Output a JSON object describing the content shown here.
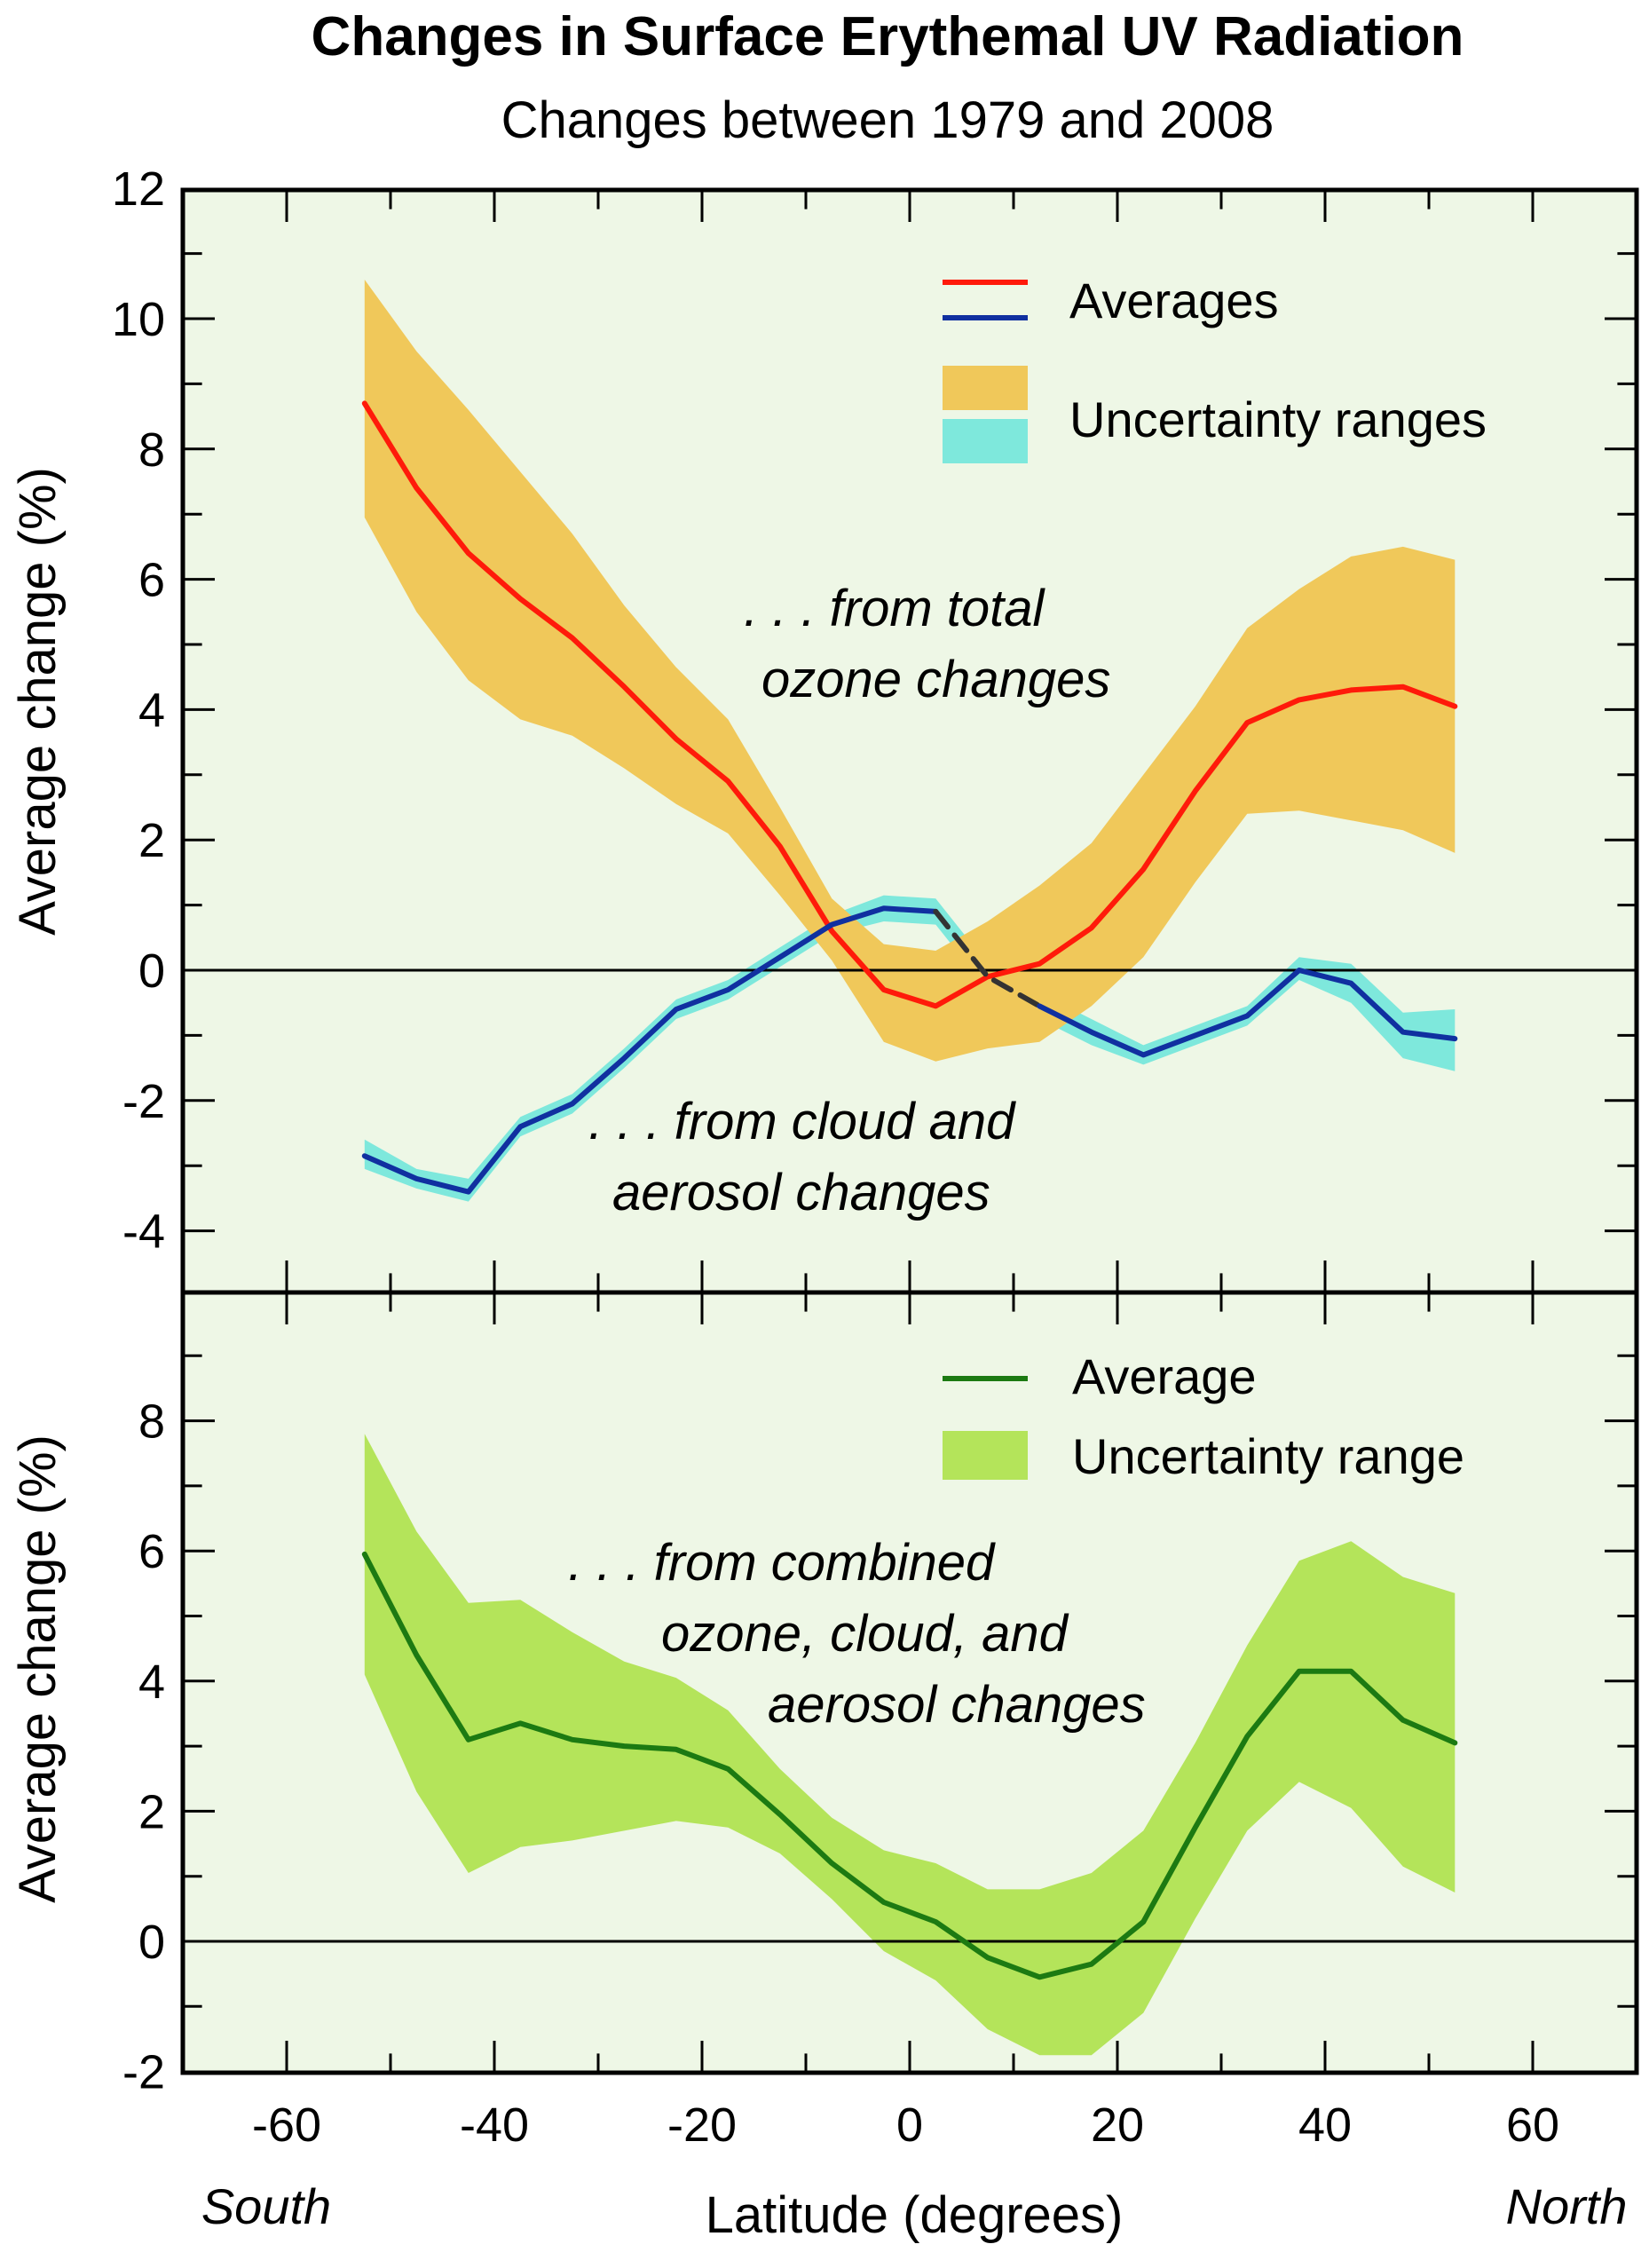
{
  "title": "Changes in Surface Erythemal UV Radiation",
  "subtitle": "Changes between 1979 and 2008",
  "x_axis": {
    "label": "Latitude (degrees)",
    "left_note": "South",
    "right_note": "North",
    "ticks": [
      -60,
      -40,
      -20,
      0,
      20,
      40,
      60
    ],
    "range": [
      -70,
      70
    ]
  },
  "colors": {
    "background": "#eef7e6",
    "ozone_avg": "#ff1a0a",
    "ozone_band": "#f0c85a",
    "cloud_avg": "#1030a0",
    "cloud_band": "#7ee8dc",
    "combined_avg": "#1c7a12",
    "combined_band": "#b4e45a"
  },
  "chart_data": [
    {
      "type": "line",
      "panel": "top",
      "ylabel": "Average change (%)",
      "ylim": [
        -5,
        12
      ],
      "yticks": [
        -4,
        -2,
        0,
        2,
        4,
        6,
        8,
        10,
        12
      ],
      "legend": {
        "avg_label": "Averages",
        "range_label": "Uncertainty ranges"
      },
      "annotations": [
        ". . . from total",
        "ozone changes",
        ". . . from cloud and",
        "aerosol  changes"
      ],
      "series": [
        {
          "name": "from total ozone changes",
          "x": [
            -52.5,
            -47.5,
            -42.5,
            -37.5,
            -32.5,
            -27.5,
            -22.5,
            -17.5,
            -12.5,
            -7.5,
            -2.5,
            2.5,
            7.5,
            12.5,
            17.5,
            22.5,
            27.5,
            32.5,
            37.5,
            42.5,
            47.5,
            52.5
          ],
          "values": [
            8.7,
            7.4,
            6.4,
            5.7,
            5.1,
            4.35,
            3.55,
            2.9,
            1.9,
            0.6,
            -0.3,
            -0.55,
            -0.1,
            0.1,
            0.65,
            1.55,
            2.75,
            3.8,
            4.15,
            4.3,
            4.35,
            4.05
          ],
          "lower": [
            6.95,
            5.5,
            4.45,
            3.85,
            3.6,
            3.1,
            2.55,
            2.1,
            1.15,
            0.15,
            -1.1,
            -1.4,
            -1.2,
            -1.1,
            -0.55,
            0.2,
            1.35,
            2.4,
            2.45,
            2.3,
            2.15,
            1.8
          ],
          "upper": [
            10.6,
            9.5,
            8.6,
            7.65,
            6.7,
            5.6,
            4.65,
            3.85,
            2.5,
            1.1,
            0.4,
            0.3,
            0.75,
            1.3,
            1.95,
            3.0,
            4.05,
            5.25,
            5.85,
            6.35,
            6.5,
            6.3
          ]
        },
        {
          "name": "from cloud and aerosol changes",
          "x": [
            -52.5,
            -47.5,
            -42.5,
            -37.5,
            -32.5,
            -27.5,
            -22.5,
            -17.5,
            -12.5,
            -7.5,
            -2.5,
            2.5,
            7.5,
            12.5,
            17.5,
            22.5,
            27.5,
            32.5,
            37.5,
            42.5,
            47.5,
            52.5
          ],
          "values": [
            -2.85,
            -3.2,
            -3.4,
            -2.4,
            -2.05,
            -1.35,
            -0.6,
            -0.3,
            0.2,
            0.7,
            0.95,
            0.9,
            -0.1,
            -0.55,
            -0.95,
            -1.3,
            -1.0,
            -0.7,
            0.0,
            -0.2,
            -0.95,
            -1.05
          ],
          "lower": [
            -3.05,
            -3.35,
            -3.55,
            -2.55,
            -2.2,
            -1.5,
            -0.75,
            -0.45,
            0.05,
            0.55,
            0.75,
            0.7,
            -0.3,
            -0.75,
            -1.15,
            -1.45,
            -1.15,
            -0.85,
            -0.15,
            -0.5,
            -1.35,
            -1.55
          ],
          "upper": [
            -2.6,
            -3.05,
            -3.2,
            -2.25,
            -1.9,
            -1.2,
            -0.45,
            -0.15,
            0.35,
            0.85,
            1.15,
            1.1,
            0.1,
            -0.35,
            -0.75,
            -1.15,
            -0.85,
            -0.55,
            0.2,
            0.1,
            -0.65,
            -0.6
          ],
          "dashed_range": [
            2.5,
            12.5
          ]
        }
      ]
    },
    {
      "type": "line",
      "panel": "bottom",
      "ylabel": "Average change (%)",
      "ylim": [
        -2,
        10
      ],
      "yticks": [
        -2,
        0,
        2,
        4,
        6,
        8
      ],
      "legend": {
        "avg_label": "Average",
        "range_label": "Uncertainty range"
      },
      "annotations": [
        ". . . from combined",
        "ozone, cloud, and",
        "aerosol changes"
      ],
      "series": [
        {
          "name": "from combined ozone, cloud, and aerosol changes",
          "x": [
            -52.5,
            -47.5,
            -42.5,
            -37.5,
            -32.5,
            -27.5,
            -22.5,
            -17.5,
            -12.5,
            -7.5,
            -2.5,
            2.5,
            7.5,
            12.5,
            17.5,
            22.5,
            27.5,
            32.5,
            37.5,
            42.5,
            47.5,
            52.5
          ],
          "values": [
            5.95,
            4.4,
            3.1,
            3.35,
            3.1,
            3.0,
            2.95,
            2.65,
            1.95,
            1.2,
            0.6,
            0.3,
            -0.25,
            -0.55,
            -0.35,
            0.3,
            1.75,
            3.15,
            4.15,
            4.15,
            3.4,
            3.05
          ],
          "lower": [
            4.1,
            2.3,
            1.05,
            1.45,
            1.55,
            1.7,
            1.85,
            1.75,
            1.35,
            0.65,
            -0.15,
            -0.6,
            -1.35,
            -1.75,
            -1.75,
            -1.1,
            0.35,
            1.7,
            2.45,
            2.05,
            1.15,
            0.75
          ],
          "upper": [
            7.8,
            6.3,
            5.2,
            5.25,
            4.75,
            4.3,
            4.05,
            3.55,
            2.65,
            1.9,
            1.4,
            1.2,
            0.8,
            0.8,
            1.05,
            1.7,
            3.05,
            4.55,
            5.85,
            6.15,
            5.6,
            5.35
          ]
        }
      ]
    }
  ]
}
